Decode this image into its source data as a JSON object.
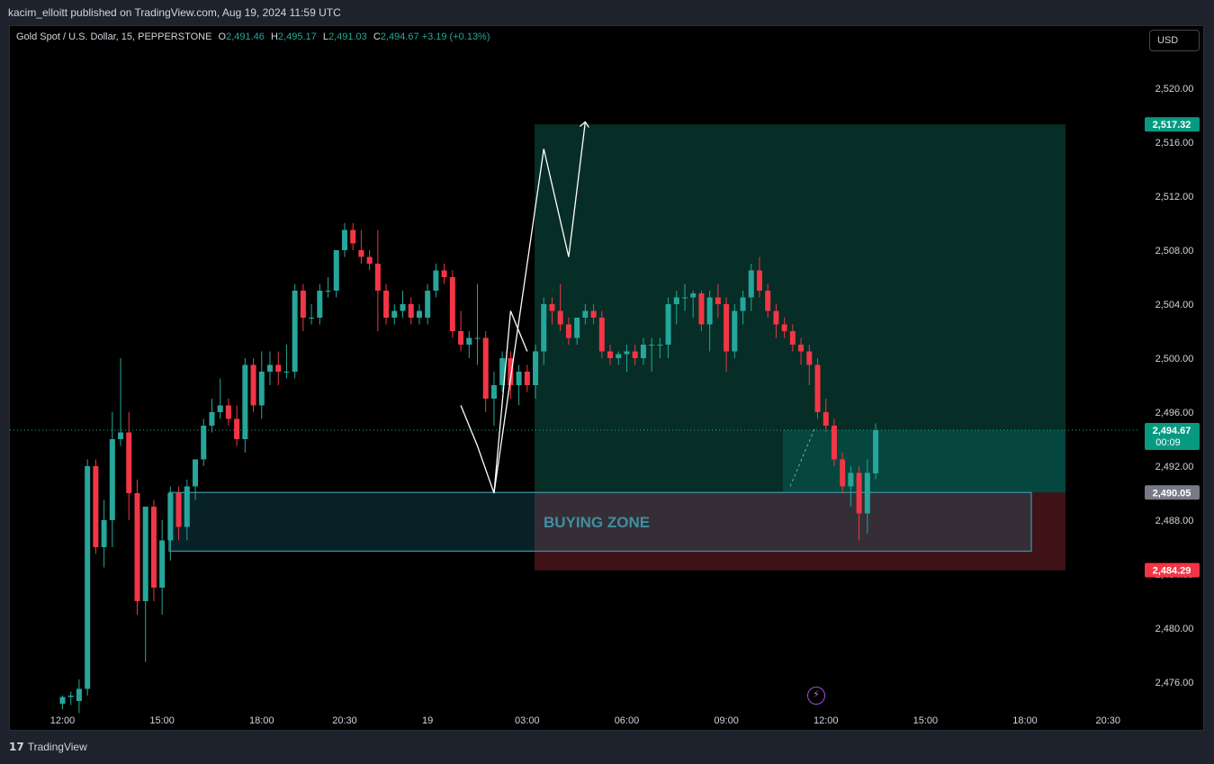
{
  "header": {
    "published_text": "kacim_elloitt published on TradingView.com, Aug 19, 2024 11:59 UTC"
  },
  "legend": {
    "symbol": "Gold Spot / U.S. Dollar, 15, PEPPERSTONE",
    "o_label": "O",
    "o_value": "2,491.46",
    "h_label": "H",
    "h_value": "2,495.17",
    "l_label": "L",
    "l_value": "2,491.03",
    "c_label": "C",
    "c_value": "2,494.67",
    "change": "+3.19 (+0.13%)"
  },
  "currency_button": "USD",
  "footer": {
    "brand": "TradingView",
    "brand_icon": "tv-logo-icon"
  },
  "colors": {
    "up": "#26a69a",
    "down": "#f23645",
    "background": "#000000",
    "target_zone": "#062d26",
    "stop_zone": "#3f1216",
    "buying_zone_border": "#3e8fa0",
    "buying_zone_text": "#3f8fa2"
  },
  "chart_data": {
    "type": "candlestick",
    "symbol": "Gold Spot / U.S. Dollar",
    "interval": "15",
    "ylim": [
      2473.5,
      2522.5
    ],
    "y_ticks": [
      2476,
      2480,
      2484,
      2488,
      2492,
      2496,
      2500,
      2504,
      2508,
      2512,
      2516,
      2520
    ],
    "y_tick_labels": [
      "2,476.00",
      "2,480.00",
      "2,484.00",
      "2,488.00",
      "2,492.00",
      "2,496.00",
      "2,500.00",
      "2,504.00",
      "2,508.00",
      "2,512.00",
      "2,516.00",
      "2,520.00"
    ],
    "x_tick_labels": [
      "12:00",
      "15:00",
      "18:00",
      "20:30",
      "19",
      "03:00",
      "06:00",
      "09:00",
      "12:00",
      "15:00",
      "18:00",
      "20:30"
    ],
    "x_tick_index": [
      0,
      12,
      24,
      34,
      44,
      56,
      68,
      80,
      92,
      104,
      116,
      126
    ],
    "price_labels": [
      {
        "value": 2517.32,
        "text": "2,517.32",
        "color": "#089981"
      },
      {
        "value": 2494.67,
        "text": "2,494.67",
        "sub": "00:09",
        "color": "#089981"
      },
      {
        "value": 2490.05,
        "text": "2,490.05",
        "color": "#787b86"
      },
      {
        "value": 2484.29,
        "text": "2,484.29",
        "color": "#f23645"
      }
    ],
    "current_price": 2494.67,
    "candles": [
      [
        2474.4,
        2475.0,
        2474.0,
        2474.9
      ],
      [
        2474.9,
        2475.3,
        2474.3,
        2475.0
      ],
      [
        2474.6,
        2476.2,
        2473.7,
        2475.5
      ],
      [
        2475.5,
        2492.5,
        2475.0,
        2492.0
      ],
      [
        2492.0,
        2492.5,
        2485.5,
        2486.0
      ],
      [
        2486.0,
        2489.5,
        2484.5,
        2488.0
      ],
      [
        2488.0,
        2496.0,
        2486.0,
        2494.0
      ],
      [
        2494.0,
        2500.0,
        2493.5,
        2494.5
      ],
      [
        2494.5,
        2496.0,
        2488.0,
        2490.0
      ],
      [
        2490.0,
        2491.0,
        2481.0,
        2482.0
      ],
      [
        2482.0,
        2489.0,
        2477.5,
        2489.0
      ],
      [
        2489.0,
        2489.5,
        2482.0,
        2483.0
      ],
      [
        2483.0,
        2488.0,
        2481.0,
        2486.5
      ],
      [
        2486.5,
        2490.5,
        2485.0,
        2490.0
      ],
      [
        2490.0,
        2490.5,
        2486.5,
        2487.5
      ],
      [
        2487.5,
        2491.0,
        2486.5,
        2490.5
      ],
      [
        2490.5,
        2492.5,
        2489.5,
        2492.5
      ],
      [
        2492.5,
        2495.5,
        2492.0,
        2495.0
      ],
      [
        2495.0,
        2497.0,
        2494.5,
        2496.0
      ],
      [
        2496.0,
        2498.5,
        2495.5,
        2496.5
      ],
      [
        2496.5,
        2497.0,
        2495.0,
        2495.5
      ],
      [
        2495.5,
        2496.5,
        2493.5,
        2494.0
      ],
      [
        2494.0,
        2500.0,
        2493.0,
        2499.5
      ],
      [
        2499.5,
        2500.0,
        2496.0,
        2496.5
      ],
      [
        2496.5,
        2500.5,
        2495.5,
        2499.0
      ],
      [
        2499.0,
        2500.5,
        2498.0,
        2499.5
      ],
      [
        2499.5,
        2500.5,
        2498.0,
        2499.0
      ],
      [
        2499.0,
        2501.0,
        2498.5,
        2499.0
      ],
      [
        2499.0,
        2505.5,
        2498.5,
        2505.0
      ],
      [
        2505.0,
        2505.5,
        2502.0,
        2503.0
      ],
      [
        2503.0,
        2504.0,
        2502.5,
        2503.0
      ],
      [
        2503.0,
        2505.5,
        2502.5,
        2505.0
      ],
      [
        2505.0,
        2506.0,
        2504.5,
        2505.0
      ],
      [
        2505.0,
        2508.0,
        2504.5,
        2508.0
      ],
      [
        2508.0,
        2510.0,
        2507.5,
        2509.5
      ],
      [
        2509.5,
        2510.0,
        2508.0,
        2508.5
      ],
      [
        2508.0,
        2509.5,
        2507.0,
        2507.5
      ],
      [
        2507.5,
        2508.0,
        2506.5,
        2507.0
      ],
      [
        2507.0,
        2509.5,
        2502.0,
        2505.0
      ],
      [
        2505.0,
        2505.5,
        2502.5,
        2503.0
      ],
      [
        2503.0,
        2504.0,
        2502.5,
        2503.5
      ],
      [
        2503.5,
        2505.0,
        2503.0,
        2504.0
      ],
      [
        2504.0,
        2504.5,
        2502.5,
        2503.0
      ],
      [
        2503.0,
        2504.0,
        2502.5,
        2503.5
      ],
      [
        2503.0,
        2505.5,
        2502.5,
        2505.0
      ],
      [
        2505.0,
        2507.0,
        2504.5,
        2506.5
      ],
      [
        2506.5,
        2507.0,
        2505.5,
        2506.0
      ],
      [
        2506.0,
        2506.5,
        2501.5,
        2502.0
      ],
      [
        2502.0,
        2503.5,
        2500.5,
        2501.0
      ],
      [
        2501.0,
        2502.0,
        2500.0,
        2501.5
      ],
      [
        2501.5,
        2505.5,
        2499.5,
        2501.5
      ],
      [
        2501.5,
        2502.0,
        2496.0,
        2497.0
      ],
      [
        2497.0,
        2499.0,
        2495.0,
        2498.0
      ],
      [
        2498.0,
        2500.5,
        2497.5,
        2500.0
      ],
      [
        2500.0,
        2500.5,
        2497.0,
        2498.0
      ],
      [
        2498.0,
        2499.5,
        2496.5,
        2499.0
      ],
      [
        2499.0,
        2499.5,
        2497.5,
        2498.0
      ],
      [
        2498.0,
        2501.0,
        2497.0,
        2500.5
      ],
      [
        2500.5,
        2504.5,
        2499.5,
        2504.0
      ],
      [
        2504.0,
        2504.5,
        2502.5,
        2503.5
      ],
      [
        2503.5,
        2505.5,
        2502.0,
        2502.5
      ],
      [
        2502.5,
        2503.0,
        2501.0,
        2501.5
      ],
      [
        2501.5,
        2503.0,
        2501.0,
        2503.0
      ],
      [
        2503.0,
        2504.0,
        2502.5,
        2503.5
      ],
      [
        2503.5,
        2504.0,
        2502.5,
        2503.0
      ],
      [
        2503.0,
        2503.5,
        2500.0,
        2500.5
      ],
      [
        2500.5,
        2501.0,
        2499.5,
        2500.0
      ],
      [
        2500.0,
        2500.5,
        2499.5,
        2500.3
      ],
      [
        2500.3,
        2501.0,
        2499.0,
        2500.5
      ],
      [
        2500.5,
        2501.0,
        2499.5,
        2500.0
      ],
      [
        2500.0,
        2501.5,
        2499.5,
        2501.0
      ],
      [
        2501.0,
        2501.5,
        2499.0,
        2501.0
      ],
      [
        2501.0,
        2501.5,
        2500.0,
        2501.0
      ],
      [
        2501.0,
        2504.5,
        2500.0,
        2504.0
      ],
      [
        2504.0,
        2505.0,
        2502.5,
        2504.5
      ],
      [
        2504.5,
        2505.5,
        2503.5,
        2504.5
      ],
      [
        2504.5,
        2505.0,
        2503.0,
        2504.8
      ],
      [
        2504.8,
        2505.0,
        2502.0,
        2502.5
      ],
      [
        2502.5,
        2505.0,
        2500.5,
        2504.5
      ],
      [
        2504.5,
        2505.5,
        2503.0,
        2504.0
      ],
      [
        2504.0,
        2504.5,
        2499.0,
        2500.5
      ],
      [
        2500.5,
        2504.0,
        2500.0,
        2503.5
      ],
      [
        2503.5,
        2505.0,
        2502.5,
        2504.5
      ],
      [
        2504.5,
        2507.0,
        2503.5,
        2506.5
      ],
      [
        2506.5,
        2507.5,
        2504.5,
        2505.0
      ],
      [
        2505.0,
        2505.5,
        2503.0,
        2503.5
      ],
      [
        2503.5,
        2504.0,
        2501.5,
        2502.5
      ],
      [
        2502.5,
        2503.0,
        2501.5,
        2502.0
      ],
      [
        2502.0,
        2502.5,
        2500.5,
        2501.0
      ],
      [
        2501.0,
        2501.5,
        2499.5,
        2500.5
      ],
      [
        2500.5,
        2501.0,
        2498.0,
        2499.5
      ],
      [
        2499.5,
        2500.0,
        2495.5,
        2496.0
      ],
      [
        2496.0,
        2497.0,
        2494.5,
        2495.0
      ],
      [
        2495.0,
        2495.5,
        2492.0,
        2492.5
      ],
      [
        2492.5,
        2493.0,
        2490.0,
        2490.5
      ],
      [
        2490.5,
        2492.0,
        2489.0,
        2491.5
      ],
      [
        2491.5,
        2492.0,
        2486.5,
        2488.5
      ],
      [
        2488.5,
        2492.5,
        2487.0,
        2491.5
      ],
      [
        2491.46,
        2495.17,
        2491.03,
        2494.67
      ]
    ],
    "annotations": {
      "target_top": 2517.32,
      "entry": 2490.05,
      "stop": 2484.29,
      "buying_zone": {
        "top": 2490.05,
        "bottom": 2485.7,
        "label": "BUYING ZONE"
      },
      "projection_path": [
        [
          48,
          2496.5
        ],
        [
          50,
          2493.5
        ],
        [
          52,
          2490.0
        ],
        [
          58,
          2515.5
        ],
        [
          61,
          2507.5
        ],
        [
          63,
          2517.5
        ]
      ],
      "projection_small": [
        [
          52,
          2490.0
        ],
        [
          54,
          2503.5
        ],
        [
          56,
          2500.5
        ]
      ]
    }
  }
}
